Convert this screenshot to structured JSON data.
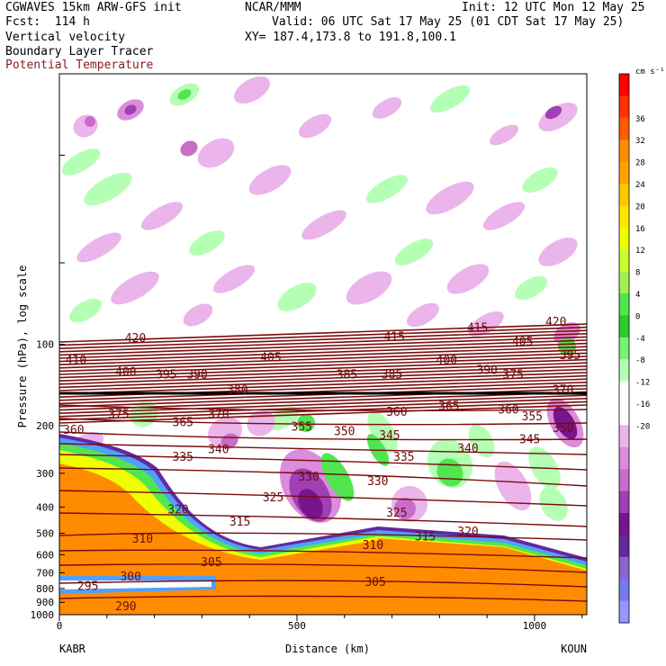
{
  "header": {
    "model": "CGWAVES 15km ARW-GFS init",
    "org": "NCAR/MMM",
    "init": "Init: 12 UTC Mon 12 May 25",
    "fcst": "Fcst:  114 h",
    "valid": "Valid: 06 UTC Sat 17 May 25 (01 CDT Sat 17 May 25)",
    "field1": "Vertical velocity",
    "xy": "XY= 187.4,173.8 to 191.8,100.1",
    "field2": "Boundary Layer Tracer",
    "field3": "Potential Temperature"
  },
  "colors": {
    "theta": "#7a0c0c",
    "field3_text": "#8b1a1a",
    "terrain_fill": "#ff8c00",
    "tropopause": "#000000"
  },
  "chart_data": {
    "type": "heatmap",
    "title": "",
    "xlabel": "Distance (km)",
    "ylabel": "Pressure (hPa), log scale",
    "y_scale": "log",
    "x_range": [
      0,
      1110
    ],
    "y_range_hPa": [
      1000,
      10
    ],
    "x_ticks": [
      0,
      500,
      1000
    ],
    "y_ticks": [
      100,
      200,
      300,
      400,
      500,
      600,
      700,
      800,
      900,
      1000
    ],
    "x_endpoints": [
      "KABR",
      "KOUN"
    ],
    "colorbar": {
      "unit": "cm s⁻¹",
      "labels": [
        "36",
        "32",
        "28",
        "24",
        "20",
        "16",
        "12",
        "8",
        "4",
        "0",
        "-4",
        "-8",
        "-12",
        "-16",
        "-20"
      ],
      "colors": [
        "#ff0000",
        "#ff3300",
        "#ff5a00",
        "#ff8c00",
        "#ffa500",
        "#ffc800",
        "#ffe600",
        "#f0ff00",
        "#c8ff32",
        "#a0f050",
        "#50e650",
        "#28cd28",
        "#78f078",
        "#b4ffb4",
        "#ffffff",
        "#ffffff",
        "#ebb4eb",
        "#dc8cdc",
        "#c86ec8",
        "#a040b4",
        "#78148c",
        "#6428a0",
        "#8c64d2",
        "#7878f0",
        "#9696ff"
      ]
    },
    "theta_labels": [
      {
        "value": "420",
        "x": 160,
        "p": 95
      },
      {
        "value": "410",
        "x": 35,
        "p": 115
      },
      {
        "value": "400",
        "x": 140,
        "p": 127
      },
      {
        "value": "395",
        "x": 225,
        "p": 130
      },
      {
        "value": "390",
        "x": 290,
        "p": 130
      },
      {
        "value": "405",
        "x": 445,
        "p": 112
      },
      {
        "value": "380",
        "x": 375,
        "p": 148
      },
      {
        "value": "415",
        "x": 705,
        "p": 94
      },
      {
        "value": "415",
        "x": 880,
        "p": 87
      },
      {
        "value": "405",
        "x": 975,
        "p": 98
      },
      {
        "value": "420",
        "x": 1045,
        "p": 83
      },
      {
        "value": "395",
        "x": 1075,
        "p": 110
      },
      {
        "value": "400",
        "x": 815,
        "p": 115
      },
      {
        "value": "390",
        "x": 900,
        "p": 125
      },
      {
        "value": "385",
        "x": 605,
        "p": 130
      },
      {
        "value": "385",
        "x": 700,
        "p": 130
      },
      {
        "value": "375",
        "x": 955,
        "p": 130
      },
      {
        "value": "370",
        "x": 1060,
        "p": 148
      },
      {
        "value": "375",
        "x": 125,
        "p": 182
      },
      {
        "value": "365",
        "x": 260,
        "p": 195
      },
      {
        "value": "370",
        "x": 335,
        "p": 182
      },
      {
        "value": "360",
        "x": 30,
        "p": 208
      },
      {
        "value": "365",
        "x": 820,
        "p": 170
      },
      {
        "value": "360",
        "x": 945,
        "p": 175
      },
      {
        "value": "360",
        "x": 710,
        "p": 178
      },
      {
        "value": "355",
        "x": 995,
        "p": 185
      },
      {
        "value": "355",
        "x": 510,
        "p": 202
      },
      {
        "value": "350",
        "x": 600,
        "p": 210
      },
      {
        "value": "345",
        "x": 695,
        "p": 218
      },
      {
        "value": "350",
        "x": 1060,
        "p": 205
      },
      {
        "value": "345",
        "x": 990,
        "p": 225
      },
      {
        "value": "340",
        "x": 335,
        "p": 245
      },
      {
        "value": "340",
        "x": 860,
        "p": 243
      },
      {
        "value": "335",
        "x": 260,
        "p": 262
      },
      {
        "value": "335",
        "x": 725,
        "p": 262
      },
      {
        "value": "330",
        "x": 525,
        "p": 310
      },
      {
        "value": "330",
        "x": 670,
        "p": 322
      },
      {
        "value": "325",
        "x": 450,
        "p": 370
      },
      {
        "value": "325",
        "x": 710,
        "p": 420
      },
      {
        "value": "320",
        "x": 250,
        "p": 410
      },
      {
        "value": "315",
        "x": 380,
        "p": 455
      },
      {
        "value": "315",
        "x": 770,
        "p": 515
      },
      {
        "value": "320",
        "x": 860,
        "p": 495
      },
      {
        "value": "310",
        "x": 175,
        "p": 525
      },
      {
        "value": "310",
        "x": 660,
        "p": 555
      },
      {
        "value": "305",
        "x": 320,
        "p": 640
      },
      {
        "value": "305",
        "x": 665,
        "p": 760
      },
      {
        "value": "300",
        "x": 150,
        "p": 725
      },
      {
        "value": "295",
        "x": 60,
        "p": 785
      },
      {
        "value": "290",
        "x": 140,
        "p": 935
      }
    ]
  }
}
